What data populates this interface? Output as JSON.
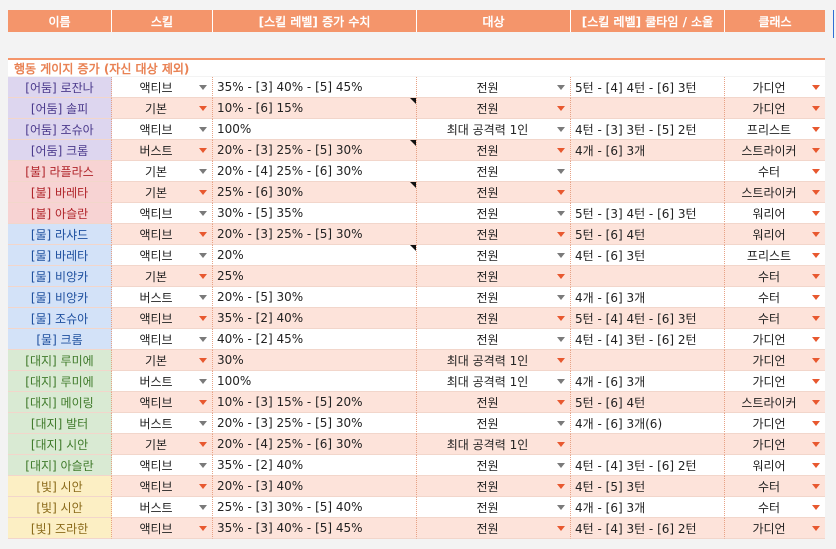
{
  "header": {
    "columns": [
      {
        "key": "name",
        "label": "이름"
      },
      {
        "key": "skill",
        "label": "스킬"
      },
      {
        "key": "increase",
        "label": "[스킬 레벨] 증가 수치"
      },
      {
        "key": "target",
        "label": "대상"
      },
      {
        "key": "cooldown",
        "label": "[스킬 레벨] 쿨타임 / 소울"
      },
      {
        "key": "class",
        "label": "클래스"
      }
    ]
  },
  "section": {
    "title": "행동 게이지 증가 (자신 대상 제외)"
  },
  "colors": {
    "header_bg": "#f4956b",
    "row_alt_bg": "#fde3da",
    "dark": "#ddd6ef",
    "fire": "#f7d3d3",
    "water": "#d3e2f8",
    "earth": "#d9ead3",
    "light": "#fcefc4",
    "arrow_gray": "#7a7a7a",
    "arrow_red": "#e8582f"
  },
  "rows": [
    {
      "name": "[어둠] 로잔나",
      "element": "dark",
      "skill": "액티브",
      "increase": "35% - [3] 40% - [5] 45%",
      "target": "전원",
      "cooldown": "5턴 - [4] 4턴 - [6] 3턴",
      "class": "가디언",
      "notes": []
    },
    {
      "name": "[어둠] 솔피",
      "element": "dark",
      "skill": "기본",
      "increase": "10% - [6] 15%",
      "target": "전원",
      "cooldown": "",
      "class": "가디언",
      "notes": [
        "increase"
      ]
    },
    {
      "name": "[어둠] 조슈아",
      "element": "dark",
      "skill": "액티브",
      "increase": "100%",
      "target": "최대 공격력 1인",
      "cooldown": "4턴 - [3] 3턴 - [5] 2턴",
      "class": "프리스트",
      "notes": []
    },
    {
      "name": "[어둠] 크롬",
      "element": "dark",
      "skill": "버스트",
      "increase": "20% - [3] 25% - [5] 30%",
      "target": "전원",
      "cooldown": "4개 - [6] 3개",
      "class": "스트라이커",
      "notes": [
        "increase"
      ]
    },
    {
      "name": "[불] 라플라스",
      "element": "fire",
      "skill": "기본",
      "increase": "20% - [4] 25% - [6] 30%",
      "target": "전원",
      "cooldown": "",
      "class": "수터",
      "notes": []
    },
    {
      "name": "[불] 바레타",
      "element": "fire",
      "skill": "기본",
      "increase": "25% - [6] 30%",
      "target": "전원",
      "cooldown": "",
      "class": "스트라이커",
      "notes": [
        "increase"
      ]
    },
    {
      "name": "[불] 아슬란",
      "element": "fire",
      "skill": "액티브",
      "increase": "30% - [5] 35%",
      "target": "전원",
      "cooldown": "5턴 - [3] 4턴 - [6] 3턴",
      "class": "워리어",
      "notes": []
    },
    {
      "name": "[물] 라샤드",
      "element": "water",
      "skill": "액티브",
      "increase": "20% - [3] 25% - [5] 30%",
      "target": "전원",
      "cooldown": "5턴 - [6] 4턴",
      "class": "워리어",
      "notes": []
    },
    {
      "name": "[물] 바레타",
      "element": "water",
      "skill": "액티브",
      "increase": "20%",
      "target": "전원",
      "cooldown": "4턴 - [6] 3턴",
      "class": "프리스트",
      "notes": [
        "increase"
      ]
    },
    {
      "name": "[물] 비앙카",
      "element": "water",
      "skill": "기본",
      "increase": "25%",
      "target": "전원",
      "cooldown": "",
      "class": "수터",
      "notes": []
    },
    {
      "name": "[물] 비앙카",
      "element": "water",
      "skill": "버스트",
      "increase": "20% - [5] 30%",
      "target": "전원",
      "cooldown": "4개 - [6] 3개",
      "class": "수터",
      "notes": []
    },
    {
      "name": "[물] 조슈아",
      "element": "water",
      "skill": "액티브",
      "increase": "35% - [2] 40%",
      "target": "전원",
      "cooldown": "5턴 - [4] 4턴 - [6] 3턴",
      "class": "수터",
      "notes": []
    },
    {
      "name": "[물] 크롬",
      "element": "water",
      "skill": "액티브",
      "increase": "40% - [2] 45%",
      "target": "전원",
      "cooldown": "4턴 - [4] 3턴 - [6] 2턴",
      "class": "가디언",
      "notes": []
    },
    {
      "name": "[대지] 루미에",
      "element": "earth",
      "skill": "기본",
      "increase": "30%",
      "target": "최대 공격력 1인",
      "cooldown": "",
      "class": "가디언",
      "notes": []
    },
    {
      "name": "[대지] 루미에",
      "element": "earth",
      "skill": "버스트",
      "increase": "100%",
      "target": "최대 공격력 1인",
      "cooldown": "4개 - [6] 3개",
      "class": "가디언",
      "notes": []
    },
    {
      "name": "[대지] 메이링",
      "element": "earth",
      "skill": "액티브",
      "increase": "10% - [3] 15% - [5] 20%",
      "target": "전원",
      "cooldown": "5턴 - [6] 4턴",
      "class": "스트라이커",
      "notes": []
    },
    {
      "name": "[대지] 발터",
      "element": "earth",
      "skill": "버스트",
      "increase": "20% - [3] 25% - [5] 30%",
      "target": "전원",
      "cooldown": "4개 - [6] 3개(6)",
      "class": "가디언",
      "notes": []
    },
    {
      "name": "[대지] 시안",
      "element": "earth",
      "skill": "기본",
      "increase": "20% - [4] 25% - [6] 30%",
      "target": "최대 공격력 1인",
      "cooldown": "",
      "class": "가디언",
      "notes": []
    },
    {
      "name": "[대지] 아슬란",
      "element": "earth",
      "skill": "액티브",
      "increase": "35% - [2] 40%",
      "target": "전원",
      "cooldown": "4턴 - [4] 3턴 - [6] 2턴",
      "class": "워리어",
      "notes": []
    },
    {
      "name": "[빛] 시안",
      "element": "light",
      "skill": "액티브",
      "increase": "20% - [3] 40%",
      "target": "전원",
      "cooldown": "4턴 - [5] 3턴",
      "class": "수터",
      "notes": []
    },
    {
      "name": "[빛] 시안",
      "element": "light",
      "skill": "버스트",
      "increase": "25% - [3] 30% - [5] 40%",
      "target": "전원",
      "cooldown": "4개 - [6] 3개",
      "class": "수터",
      "notes": []
    },
    {
      "name": "[빛] 즈라한",
      "element": "light",
      "skill": "액티브",
      "increase": "35% - [3] 40% - [5] 45%",
      "target": "전원",
      "cooldown": "4턴 - [4] 3턴 - [6] 2턴",
      "class": "가디언",
      "notes": []
    }
  ]
}
